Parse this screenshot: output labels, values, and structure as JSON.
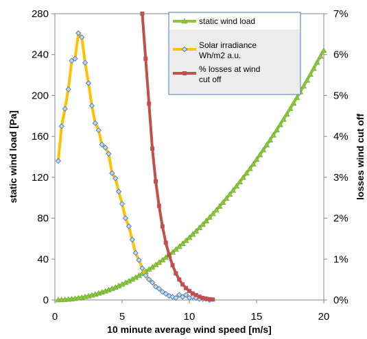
{
  "chart_data": {
    "type": "line",
    "title": "",
    "xlabel": "10 minute average wind speed [m/s]",
    "ylabel": "static wind load [Pa]",
    "y2label": "losses wind cut off",
    "xlim": [
      0,
      20
    ],
    "ylim": [
      0,
      280
    ],
    "y2lim": [
      0,
      7
    ],
    "x_ticks": [
      0,
      5,
      10,
      15,
      20
    ],
    "y_ticks": [
      0,
      40,
      80,
      120,
      160,
      200,
      240,
      280
    ],
    "y2_ticks": [
      "0%",
      "1%",
      "2%",
      "3%",
      "4%",
      "5%",
      "6%",
      "7%"
    ],
    "grid": false,
    "legend_position": "top-center",
    "series": [
      {
        "name": "static wind load",
        "axis": "left",
        "color": "#8cc63f",
        "marker": "triangle",
        "x": [
          0.25,
          0.5,
          0.75,
          1,
          1.25,
          1.5,
          1.75,
          2,
          2.25,
          2.5,
          2.75,
          3,
          3.25,
          3.5,
          3.75,
          4,
          4.25,
          4.5,
          4.75,
          5,
          5.25,
          5.5,
          5.75,
          6,
          6.25,
          6.5,
          6.75,
          7,
          7.25,
          7.5,
          7.75,
          8,
          8.25,
          8.5,
          8.75,
          9,
          9.25,
          9.5,
          9.75,
          10,
          10.25,
          10.5,
          10.75,
          11,
          11.25,
          11.5,
          11.75,
          12,
          12.25,
          12.5,
          12.75,
          13,
          13.25,
          13.5,
          13.75,
          14,
          14.25,
          14.5,
          14.75,
          15,
          15.25,
          15.5,
          15.75,
          16,
          16.25,
          16.5,
          16.75,
          17,
          17.25,
          17.5,
          17.75,
          18,
          18.25,
          18.5,
          18.75,
          19,
          19.25,
          19.5,
          19.75,
          20
        ],
        "values": [
          0.04,
          0.15,
          0.34,
          0.61,
          0.95,
          1.37,
          1.87,
          2.44,
          3.09,
          3.81,
          4.61,
          5.49,
          6.44,
          7.47,
          8.58,
          9.76,
          11.02,
          12.35,
          13.77,
          15.25,
          16.81,
          18.45,
          20.17,
          21.96,
          23.83,
          25.77,
          27.79,
          29.89,
          32.06,
          34.31,
          36.64,
          39.04,
          41.52,
          44.07,
          46.71,
          49.41,
          52.2,
          55.06,
          58.0,
          61.01,
          64.11,
          67.27,
          70.52,
          73.84,
          77.24,
          80.71,
          84.26,
          87.88,
          91.58,
          95.36,
          99.22,
          103.15,
          107.16,
          111.25,
          115.41,
          119.65,
          123.96,
          128.36,
          132.83,
          137.37,
          142.0,
          146.7,
          151.47,
          156.32,
          161.25,
          166.26,
          171.34,
          176.5,
          181.74,
          187.05,
          192.44,
          197.91,
          203.46,
          209.08,
          214.78,
          220.55,
          226.4,
          232.33,
          238.34,
          244.0
        ]
      },
      {
        "name": "Solar irradiance Wh/m2 a.u.",
        "axis": "left",
        "color": "#ffc000",
        "marker": "diamond",
        "x": [
          0.25,
          0.5,
          0.75,
          1,
          1.25,
          1.5,
          1.75,
          2,
          2.25,
          2.5,
          2.75,
          3,
          3.25,
          3.5,
          3.75,
          4,
          4.25,
          4.5,
          4.75,
          5,
          5.25,
          5.5,
          5.75,
          6,
          6.25,
          6.5,
          6.75,
          7,
          7.25,
          7.5,
          7.75,
          8,
          8.25,
          8.5,
          8.75,
          9,
          9.25,
          9.5,
          9.75,
          10,
          10.25,
          10.5,
          10.75,
          11,
          11.25,
          11.5
        ],
        "values": [
          136,
          170,
          187,
          206,
          234,
          236,
          261,
          257,
          232,
          212,
          190,
          173,
          166,
          152,
          149,
          143,
          124,
          119,
          106,
          94,
          80,
          72,
          59,
          46,
          39,
          31,
          24,
          20,
          17,
          13,
          11,
          8,
          6,
          4,
          3,
          2,
          5,
          3,
          5,
          2,
          3,
          2,
          1,
          1,
          1,
          0
        ]
      },
      {
        "name": "% losses at wind cut off",
        "axis": "right",
        "color": "#c0504d",
        "marker": "square",
        "x": [
          6.5,
          6.75,
          7,
          7.25,
          7.5,
          7.75,
          8,
          8.25,
          8.5,
          8.75,
          9,
          9.25,
          9.5,
          9.75,
          10,
          10.25,
          10.5,
          10.75,
          11,
          11.25,
          11.5,
          11.75
        ],
        "values": [
          7.0,
          5.9,
          4.8,
          3.7,
          2.9,
          2.3,
          1.8,
          1.4,
          1.1,
          0.85,
          0.65,
          0.5,
          0.38,
          0.29,
          0.22,
          0.16,
          0.12,
          0.08,
          0.05,
          0.03,
          0.02,
          0.01
        ]
      }
    ]
  }
}
